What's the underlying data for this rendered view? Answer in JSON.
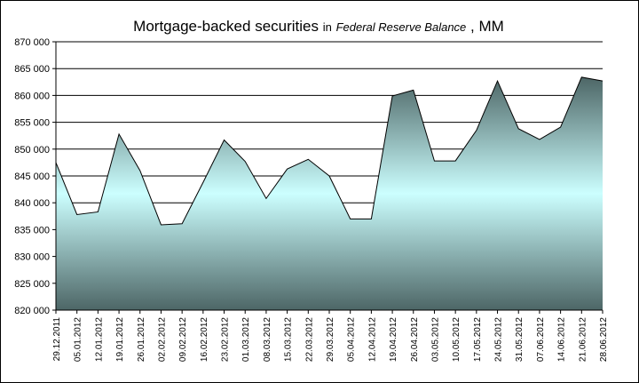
{
  "chart_data": {
    "type": "area",
    "title": {
      "main": "Mortgage-backed securities",
      "connector": "in",
      "source": "Federal Reserve Balance",
      "separator": ",",
      "unit": "MM"
    },
    "ylim": [
      820000,
      870000
    ],
    "y_ticks": [
      "820 000",
      "825 000",
      "830 000",
      "835 000",
      "840 000",
      "845 000",
      "850 000",
      "855 000",
      "860 000",
      "865 000",
      "870 000"
    ],
    "grid": "horizontal",
    "legend": "none",
    "categories": [
      "29.12.2011",
      "05.01.2012",
      "12.01.2012",
      "19.01.2012",
      "26.01.2012",
      "02.02.2012",
      "09.02.2012",
      "16.02.2012",
      "23.02.2012",
      "01.03.2012",
      "08.03.2012",
      "15.03.2012",
      "22.03.2012",
      "29.03.2012",
      "05.04.2012",
      "12.04.2012",
      "19.04.2012",
      "26.04.2012",
      "03.05.2012",
      "10.05.2012",
      "17.05.2012",
      "24.05.2012",
      "31.05.2012",
      "07.06.2012",
      "14.06.2012",
      "21.06.2012",
      "28.06.2012"
    ],
    "values": [
      847500,
      837800,
      838300,
      852800,
      846000,
      835900,
      836100,
      843800,
      851700,
      847700,
      840800,
      846300,
      848100,
      845000,
      837000,
      837000,
      859900,
      861000,
      847800,
      847800,
      853500,
      862700,
      853800,
      851800,
      854100,
      863400,
      862700
    ],
    "colors": {
      "fill_light": "#ccffff",
      "fill_dark": "#4d6666",
      "outline": "#000000"
    }
  }
}
